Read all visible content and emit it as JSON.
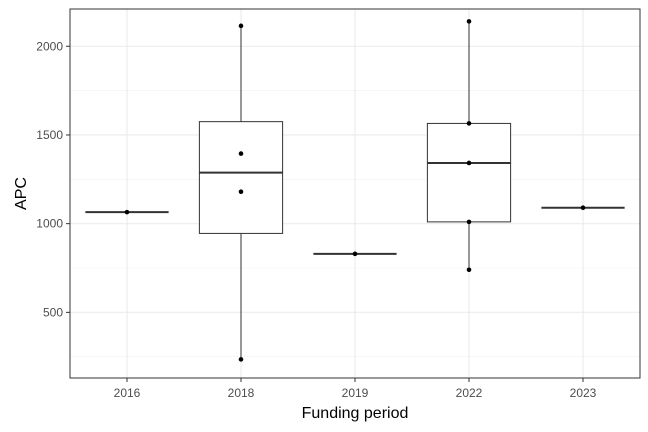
{
  "chart_data": {
    "type": "boxplot",
    "title": "",
    "xlabel": "Funding period",
    "ylabel": "APC",
    "ylim": [
      130,
      2210
    ],
    "y_ticks": [
      500,
      1000,
      1500,
      2000
    ],
    "grid": true,
    "categories": [
      "2016",
      "2018",
      "2019",
      "2022",
      "2023"
    ],
    "boxes": [
      {
        "category": "2016",
        "q1": 1065,
        "median": 1065,
        "q3": 1065,
        "whisker_low": 1065,
        "whisker_high": 1065,
        "points": [
          1065
        ]
      },
      {
        "category": "2018",
        "q1": 945,
        "median": 1288,
        "q3": 1575,
        "whisker_low": 235,
        "whisker_high": 2115,
        "points": [
          2115,
          1395,
          1180,
          235
        ]
      },
      {
        "category": "2019",
        "q1": 830,
        "median": 830,
        "q3": 830,
        "whisker_low": 830,
        "whisker_high": 830,
        "points": [
          830
        ]
      },
      {
        "category": "2022",
        "q1": 1010,
        "median": 1342,
        "q3": 1565,
        "whisker_low": 740,
        "whisker_high": 2140,
        "points": [
          2140,
          1565,
          1342,
          1010,
          740
        ]
      },
      {
        "category": "2023",
        "q1": 1090,
        "median": 1090,
        "q3": 1090,
        "whisker_low": 1090,
        "whisker_high": 1090,
        "points": [
          1090
        ]
      }
    ]
  }
}
